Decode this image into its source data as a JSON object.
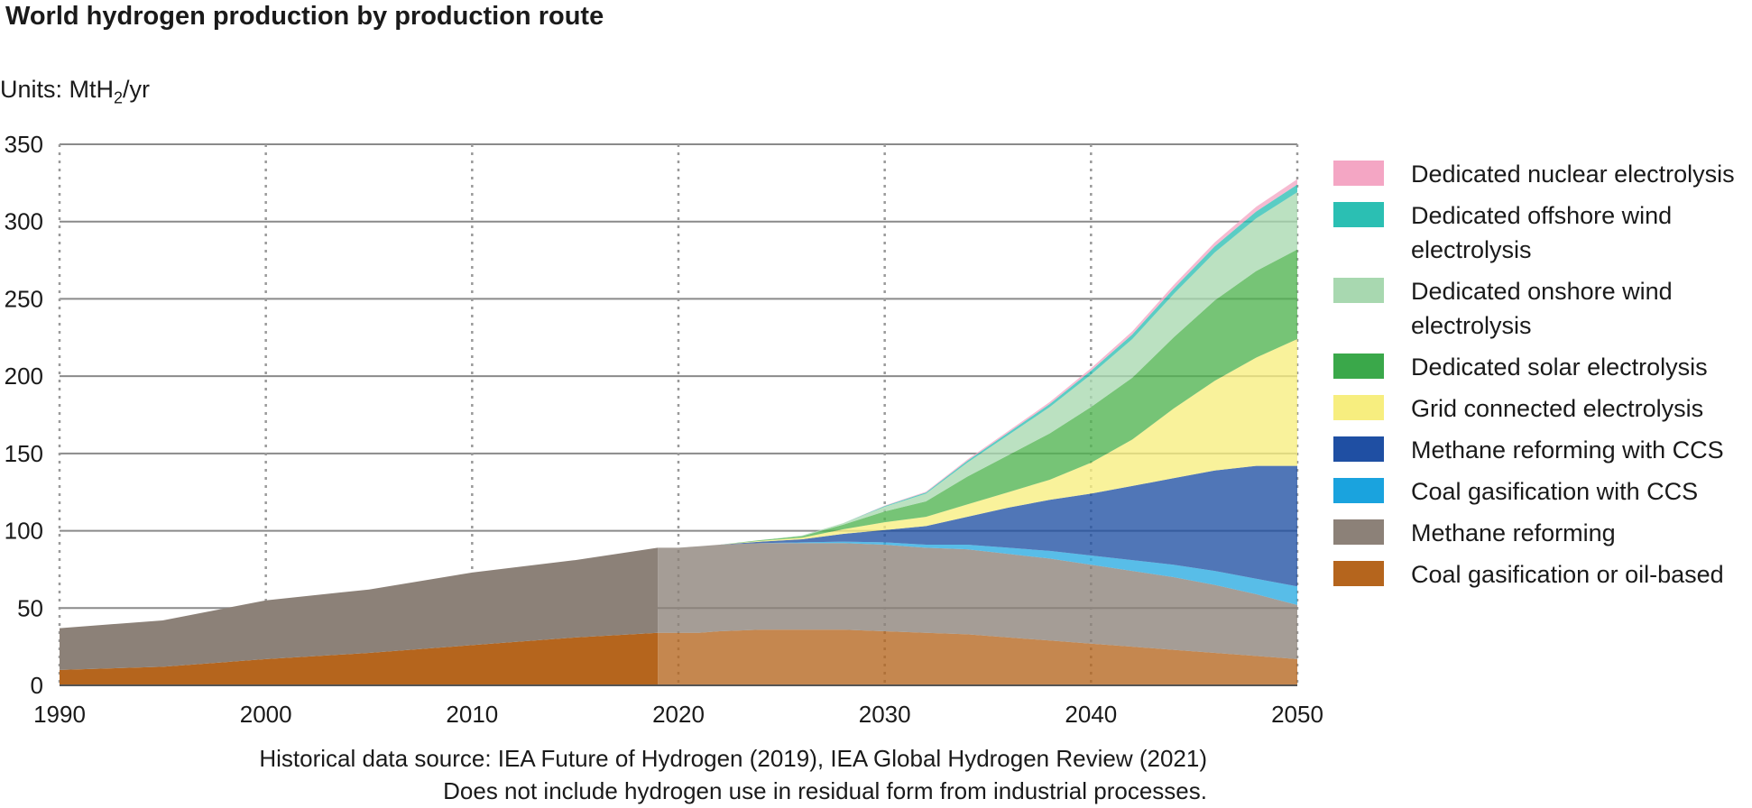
{
  "chart_data": {
    "type": "area",
    "title": "World hydrogen production by production route",
    "units_prefix": "Units: MtH",
    "units_sub": "2",
    "units_suffix": "/yr",
    "xlim": [
      1990,
      2050
    ],
    "ylim": [
      0,
      350
    ],
    "xticks": [
      1990,
      2000,
      2010,
      2020,
      2030,
      2040,
      2050
    ],
    "yticks": [
      0,
      50,
      100,
      150,
      200,
      250,
      300,
      350
    ],
    "grid": true,
    "stacked": true,
    "historical_until": 2019,
    "legend_position": "right",
    "x": [
      1990,
      1995,
      2000,
      2005,
      2010,
      2015,
      2019,
      2020,
      2021,
      2022,
      2024,
      2026,
      2028,
      2030,
      2032,
      2034,
      2036,
      2038,
      2040,
      2042,
      2044,
      2046,
      2048,
      2050
    ],
    "series": [
      {
        "name": "Coal gasification or oil-based",
        "color": "#b5651d",
        "values": [
          10,
          12,
          17,
          21,
          26,
          31,
          34,
          34,
          34,
          35,
          36,
          36,
          36,
          35,
          34,
          33,
          31,
          29,
          27,
          25,
          23,
          21,
          19,
          17
        ]
      },
      {
        "name": "Methane reforming",
        "color": "#8c8178",
        "values": [
          27,
          30,
          38,
          41,
          47,
          50,
          55,
          55,
          56,
          56,
          56,
          56,
          56,
          56,
          55,
          55,
          54,
          53,
          51,
          49,
          47,
          44,
          40,
          35
        ]
      },
      {
        "name": "Coal gasification with CCS",
        "color": "#29abe2",
        "values": [
          0,
          0,
          0,
          0,
          0,
          0,
          0,
          0,
          0,
          0,
          0,
          0.5,
          1,
          1.5,
          2,
          3,
          4,
          5,
          6,
          7,
          8,
          9,
          10,
          12
        ]
      },
      {
        "name": "Methane reforming with CCS",
        "color": "#1f4fa3",
        "values": [
          0,
          0,
          0,
          0,
          0,
          0,
          0,
          0,
          0,
          0,
          1,
          2,
          5,
          8,
          12,
          18,
          26,
          33,
          40,
          48,
          56,
          65,
          73,
          78
        ]
      },
      {
        "name": "Grid connected electrolysis",
        "color": "#f7ee7f",
        "values": [
          0,
          0,
          0,
          0,
          0,
          0,
          0,
          0,
          0,
          0,
          0.5,
          1,
          3,
          5,
          6,
          8,
          10,
          13,
          20,
          30,
          45,
          58,
          70,
          82
        ]
      },
      {
        "name": "Dedicated solar electrolysis",
        "color": "#4fb34f",
        "values": [
          0,
          0,
          0,
          0,
          0,
          0,
          0,
          0,
          0,
          0,
          0.5,
          1,
          3,
          7,
          10,
          18,
          24,
          30,
          36,
          40,
          46,
          52,
          56,
          58
        ]
      },
      {
        "name": "Dedicated onshore wind electrolysis",
        "color": "#a8d8b0",
        "values": [
          0,
          0,
          0,
          0,
          0,
          0,
          0,
          0,
          0,
          0,
          0,
          0.5,
          1,
          3,
          5,
          9,
          13,
          17,
          21,
          25,
          28,
          31,
          34,
          37
        ]
      },
      {
        "name": "Dedicated offshore wind electrolysis",
        "color": "#2bbfb3",
        "values": [
          0,
          0,
          0,
          0,
          0,
          0,
          0,
          0,
          0,
          0,
          0,
          0,
          0,
          0.5,
          0.8,
          1.2,
          1.6,
          2,
          2.5,
          3,
          3.5,
          4,
          4.5,
          5
        ]
      },
      {
        "name": "Dedicated nuclear electrolysis",
        "color": "#f4a6c4",
        "values": [
          0,
          0,
          0,
          0,
          0,
          0,
          0,
          0,
          0,
          0,
          0,
          0,
          0,
          0.3,
          0.5,
          0.8,
          1,
          1.3,
          1.6,
          2,
          2.3,
          2.6,
          3,
          3.5
        ]
      }
    ],
    "legend": [
      {
        "label": "Dedicated nuclear electrolysis",
        "color": "#f4a6c4"
      },
      {
        "label": "Dedicated offshore wind electrolysis",
        "color": "#2bbfb3"
      },
      {
        "label": "Dedicated onshore wind electrolysis",
        "color": "#a8d8b0"
      },
      {
        "label": "Dedicated solar electrolysis",
        "color": "#3aa84a"
      },
      {
        "label": "Grid connected electrolysis",
        "color": "#f7ee7f"
      },
      {
        "label": "Methane reforming with CCS",
        "color": "#1f4fa3"
      },
      {
        "label": "Coal gasification with CCS",
        "color": "#1aa3de"
      },
      {
        "label": "Methane reforming",
        "color": "#8c8178"
      },
      {
        "label": "Coal gasification or oil-based",
        "color": "#b5651d"
      }
    ],
    "footnotes": [
      "Historical data source: IEA Future of Hydrogen (2019), IEA Global Hydrogen Review (2021)",
      "Does not include hydrogen use in residual form from industrial processes."
    ]
  }
}
